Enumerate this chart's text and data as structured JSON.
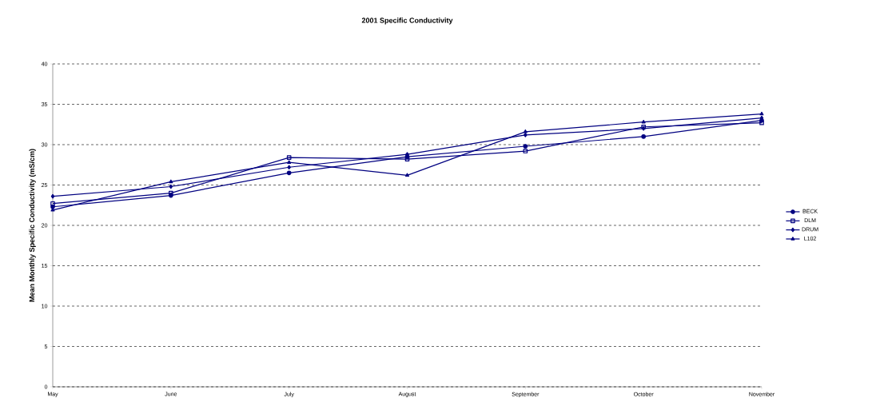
{
  "chart_data": {
    "type": "line",
    "title": "2001 Specific Conductivity",
    "ylabel": "Mean Monthly Specific Conductivity (mS/cm)",
    "categories": [
      "May",
      "June",
      "July",
      "August",
      "September",
      "October",
      "November"
    ],
    "series": [
      {
        "name": "BECK",
        "color": "#000080",
        "marker": "circle",
        "values": [
          22.3,
          23.7,
          26.5,
          28.5,
          29.8,
          31.0,
          33.0
        ]
      },
      {
        "name": "DLM",
        "color": "#000080",
        "marker": "square",
        "values": [
          22.7,
          24.0,
          28.4,
          28.2,
          29.2,
          32.2,
          32.7
        ]
      },
      {
        "name": "DRUM",
        "color": "#000080",
        "marker": "diamond",
        "values": [
          23.6,
          24.8,
          27.2,
          28.8,
          31.2,
          32.0,
          33.3
        ]
      },
      {
        "name": "L102",
        "color": "#000080",
        "marker": "triangle",
        "values": [
          21.9,
          25.4,
          27.8,
          26.2,
          31.6,
          32.8,
          33.8
        ]
      }
    ],
    "ylim": [
      0,
      40
    ],
    "yticks": [
      0,
      5,
      10,
      15,
      20,
      25,
      30,
      35,
      40
    ],
    "grid": "y",
    "legend": "right",
    "line_style": "solid"
  }
}
